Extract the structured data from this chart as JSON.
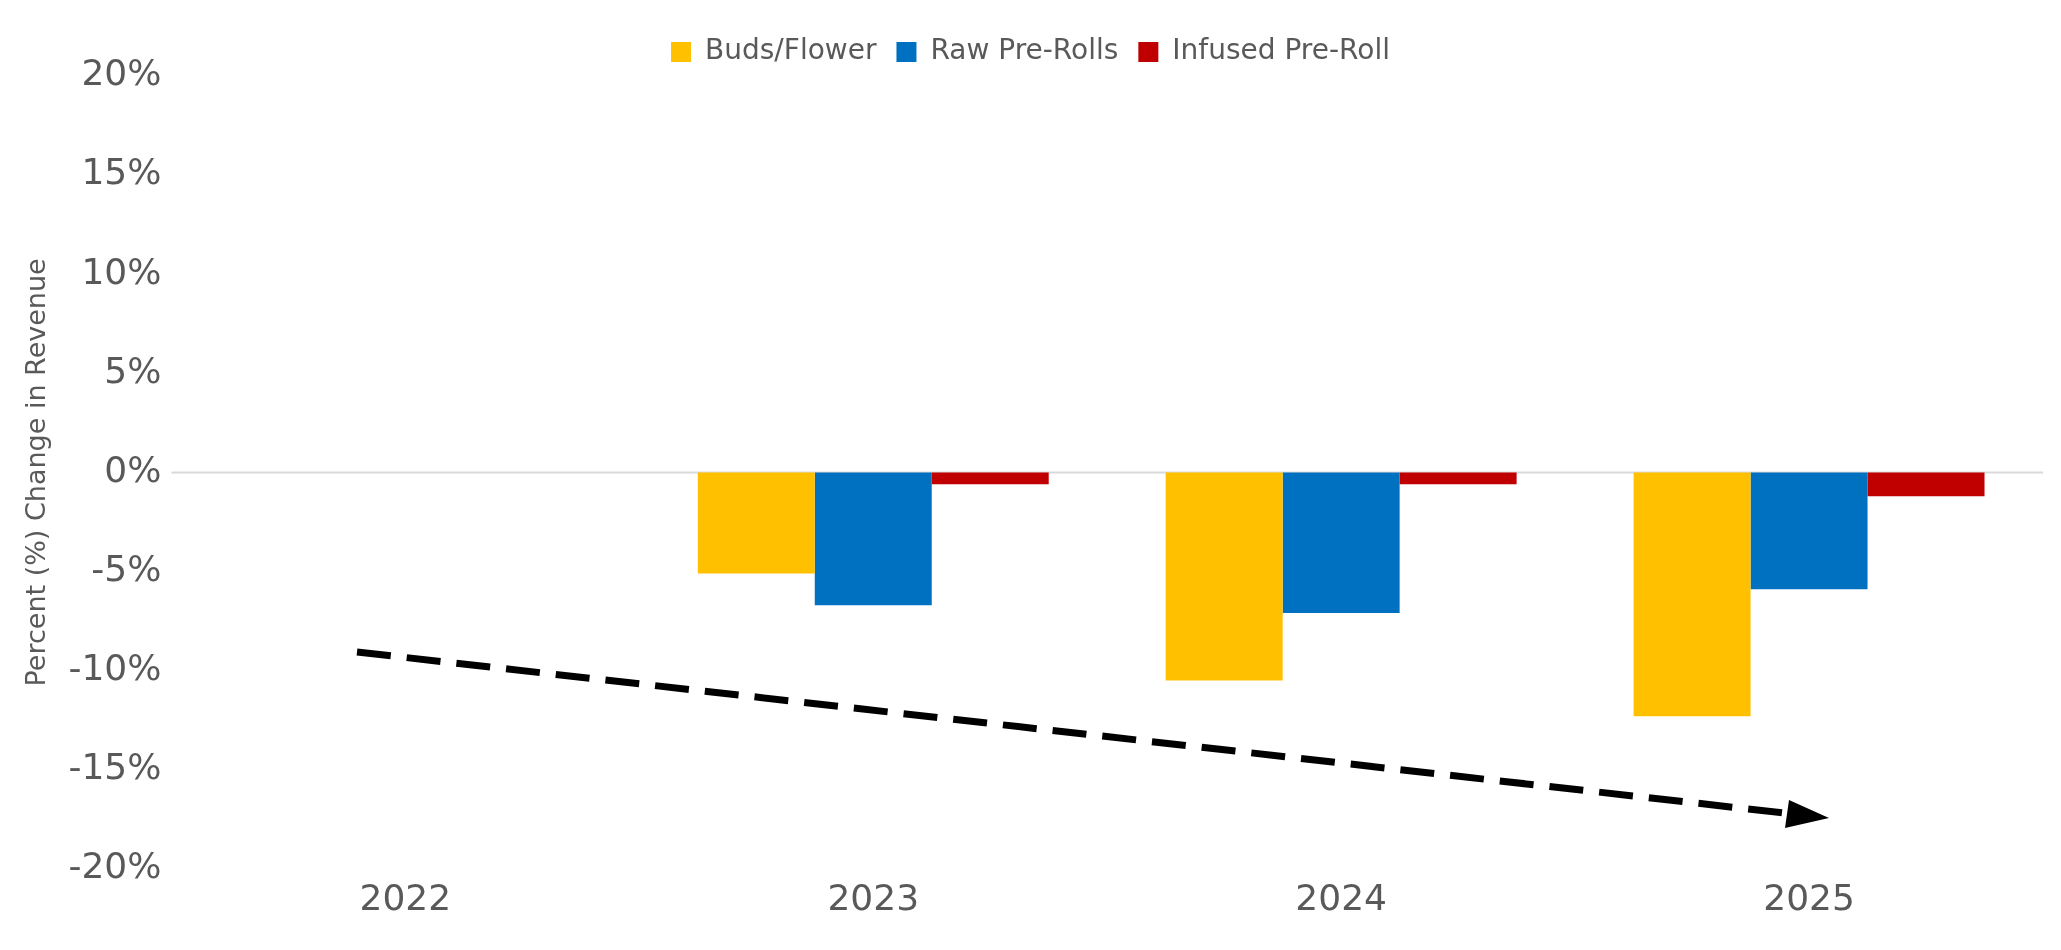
{
  "chart_data": {
    "type": "bar",
    "ylabel": "Percent (%) Change in Revenue",
    "categories": [
      "2022",
      "2023",
      "2024",
      "2025"
    ],
    "series": [
      {
        "name": "Buds/Flower",
        "color": "#ffc000",
        "values": [
          null,
          -5.1,
          -10.5,
          -12.3
        ]
      },
      {
        "name": "Raw Pre-Rolls",
        "color": "#0070c0",
        "values": [
          null,
          -6.7,
          -7.1,
          -5.9
        ]
      },
      {
        "name": "Infused Pre-Roll",
        "color": "#c00000",
        "values": [
          null,
          -0.6,
          -0.6,
          -1.2
        ]
      }
    ],
    "ylim": [
      -20,
      20
    ],
    "yticks": [
      {
        "value": -20,
        "label": "-20%"
      },
      {
        "value": -15,
        "label": "-15%"
      },
      {
        "value": -10,
        "label": "-10%"
      },
      {
        "value": -5,
        "label": "-5%"
      },
      {
        "value": 0,
        "label": "0%"
      },
      {
        "value": 5,
        "label": "5%"
      },
      {
        "value": 10,
        "label": "10%"
      },
      {
        "value": 15,
        "label": "15%"
      },
      {
        "value": 20,
        "label": "20%"
      }
    ],
    "ref_lines": [
      {
        "axis": "y",
        "value": 0,
        "color": "#d9d9d9"
      }
    ],
    "grid": false,
    "legend": "top"
  }
}
